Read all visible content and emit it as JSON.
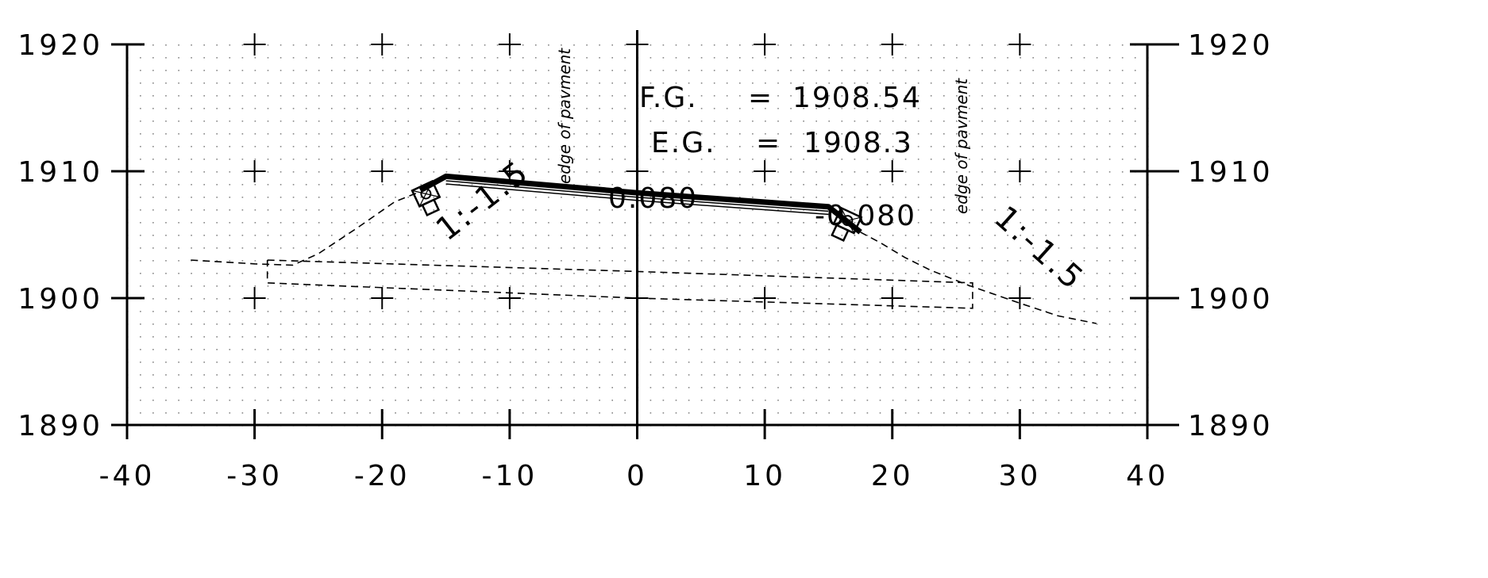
{
  "drawing": {
    "title": "",
    "fg_label": "F.G.",
    "fg_sep": "=",
    "fg_value": "1908.54",
    "eg_label": "E.G.",
    "eg_sep": "=",
    "eg_value": "1908.3",
    "left_crossfall": "0.080",
    "right_crossfall": "-0.080",
    "left_slope": "1:-1.5",
    "right_slope": "1:-1.5",
    "left_edge_label": "edge of pavment",
    "right_edge_label": "edge of pavment"
  },
  "chart_data": {
    "type": "line",
    "x_ticks": [
      "-40",
      "-30",
      "-20",
      "-10",
      "0",
      "10",
      "20",
      "30",
      "40"
    ],
    "y_ticks_left": [
      "1920",
      "1910",
      "1900",
      "1890"
    ],
    "y_ticks_right": [
      "1920",
      "1910",
      "1900",
      "1890"
    ],
    "xlim": [
      -40,
      40
    ],
    "ylim": [
      1890,
      1920
    ],
    "grid": true,
    "series": [
      {
        "style": "solid",
        "points": [
          [
            -17,
            1908.5
          ],
          [
            -15,
            1909.6
          ],
          [
            0,
            1908.3
          ],
          [
            15,
            1907.2
          ],
          [
            17.5,
            1905.2
          ]
        ]
      },
      {
        "style": "dashed",
        "points": [
          [
            -35,
            1903.0
          ],
          [
            -30,
            1902.7
          ],
          [
            -27,
            1902.6
          ],
          [
            -25,
            1903.5
          ],
          [
            -22,
            1905.5
          ],
          [
            -19,
            1907.6
          ],
          [
            -17,
            1908.4
          ]
        ]
      },
      {
        "style": "dashed",
        "points": [
          [
            17.5,
            1905.2
          ],
          [
            19,
            1904.4
          ],
          [
            21,
            1903.2
          ],
          [
            23,
            1902.2
          ],
          [
            26,
            1901.0
          ],
          [
            30,
            1899.6
          ],
          [
            33,
            1898.6
          ],
          [
            36,
            1898.0
          ]
        ]
      },
      {
        "style": "dashed",
        "points": [
          [
            -29,
            1903.0
          ],
          [
            0,
            1902.1
          ],
          [
            26.3,
            1901.2
          ],
          [
            26.3,
            1899.2
          ],
          [
            0,
            1900.0
          ],
          [
            -29,
            1901.2
          ],
          [
            -29,
            1903.0
          ]
        ]
      }
    ]
  }
}
